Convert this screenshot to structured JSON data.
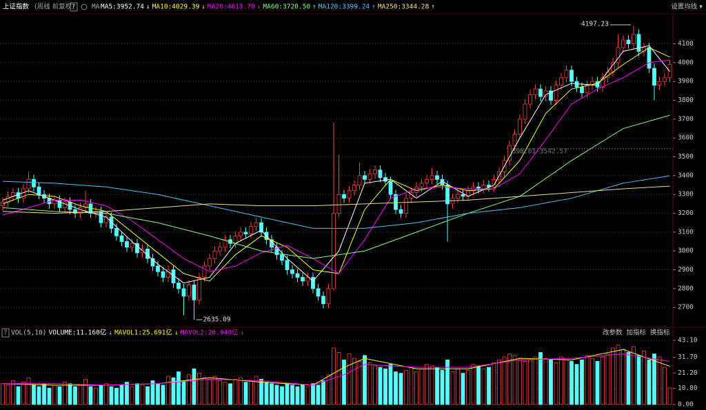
{
  "header": {
    "title": "上证指数",
    "subtitle": "(周线 前复权)",
    "help": "?",
    "ma": "MA",
    "settings": "设置均线 ▾"
  },
  "chart_data": [
    {
      "type": "candlestick",
      "up_color": "#ff3c3c",
      "down_color": "#54fcfc",
      "ylim": [
        2613,
        4252
      ],
      "yticks": [
        2700,
        2800,
        2900,
        3000,
        3100,
        3200,
        3300,
        3400,
        3500,
        3600,
        3700,
        3800,
        3900,
        4000,
        4100
      ],
      "level": 3542.57,
      "level_label": "3598.01-3542.57",
      "open": [
        3240,
        3260,
        3290,
        3310,
        3280,
        3330,
        3380,
        3340,
        3300,
        3280,
        3250,
        3270,
        3230,
        3260,
        3220,
        3200,
        3230,
        3250,
        3200,
        3210,
        3150,
        3180,
        3120,
        3080,
        3050,
        3020,
        3040,
        2990,
        3010,
        2960,
        2920,
        2890,
        2860,
        2900,
        2830,
        2800,
        2760,
        2820,
        2740,
        2860,
        2920,
        2960,
        3000,
        3020,
        3060,
        3040,
        3080,
        3100,
        3090,
        3130,
        3150,
        3100,
        3060,
        3020,
        2980,
        2950,
        2900,
        2880,
        2860,
        2840,
        2860,
        2800,
        2760,
        2720,
        2800,
        3200,
        3300,
        3280,
        3320,
        3350,
        3400,
        3380,
        3410,
        3430,
        3390,
        3370,
        3300,
        3220,
        3200,
        3280,
        3310,
        3340,
        3360,
        3380,
        3400,
        3380,
        3350,
        3250,
        3280,
        3300,
        3290,
        3320,
        3340,
        3330,
        3350,
        3340,
        3380,
        3420,
        3480,
        3560,
        3620,
        3700,
        3780,
        3830,
        3860,
        3820,
        3850,
        3800,
        3880,
        3920,
        3960,
        3900,
        3870,
        3840,
        3880,
        3900,
        3870,
        3920,
        3950,
        4000,
        4080,
        4120,
        4100,
        4150,
        4060,
        4080,
        3970,
        3880,
        3900,
        3920
      ],
      "high": [
        3285,
        3315,
        3335,
        3335,
        3355,
        3420,
        3405,
        3365,
        3325,
        3305,
        3295,
        3295,
        3285,
        3285,
        3245,
        3255,
        3320,
        3275,
        3235,
        3235,
        3205,
        3205,
        3145,
        3105,
        3075,
        3065,
        3065,
        3035,
        3035,
        2985,
        2945,
        2915,
        2925,
        2925,
        2855,
        2825,
        2845,
        2845,
        2885,
        2945,
        2985,
        3025,
        3045,
        3085,
        3085,
        3105,
        3125,
        3125,
        3155,
        3175,
        3175,
        3125,
        3085,
        3045,
        3005,
        2975,
        2925,
        2905,
        2885,
        2885,
        2885,
        2825,
        2785,
        2825,
        3680,
        3510,
        3325,
        3345,
        3375,
        3470,
        3425,
        3435,
        3455,
        3455,
        3415,
        3395,
        3325,
        3245,
        3305,
        3335,
        3365,
        3385,
        3405,
        3440,
        3425,
        3405,
        3375,
        3305,
        3325,
        3325,
        3345,
        3365,
        3365,
        3375,
        3375,
        3405,
        3445,
        3505,
        3585,
        3645,
        3725,
        3805,
        3855,
        3885,
        3885,
        3875,
        3875,
        3905,
        3945,
        3985,
        3985,
        3925,
        3895,
        3905,
        3925,
        3925,
        3945,
        3975,
        4025,
        4150,
        4145,
        4145,
        4197.23,
        4175,
        4105,
        4105,
        3995,
        3925,
        3945,
        4015
      ],
      "low": [
        3215,
        3235,
        3265,
        3255,
        3255,
        3305,
        3315,
        3275,
        3255,
        3225,
        3225,
        3205,
        3205,
        3195,
        3175,
        3175,
        3205,
        3175,
        3175,
        3125,
        3125,
        3095,
        3055,
        3025,
        2995,
        2995,
        2965,
        2965,
        2935,
        2895,
        2865,
        2835,
        2835,
        2805,
        2775,
        2660,
        2735,
        2635.09,
        2715,
        2835,
        2895,
        2935,
        2975,
        2995,
        3015,
        3015,
        3055,
        3065,
        3065,
        3105,
        3075,
        3035,
        2995,
        2955,
        2925,
        2875,
        2855,
        2835,
        2815,
        2815,
        2775,
        2735,
        2695,
        2695,
        2790,
        3180,
        3255,
        3255,
        3295,
        3325,
        3355,
        3355,
        3385,
        3365,
        3345,
        3275,
        3195,
        3175,
        3175,
        3255,
        3285,
        3315,
        3335,
        3355,
        3355,
        3325,
        3050,
        3225,
        3255,
        3265,
        3265,
        3295,
        3305,
        3305,
        3315,
        3315,
        3355,
        3395,
        3455,
        3535,
        3595,
        3675,
        3755,
        3805,
        3795,
        3795,
        3775,
        3775,
        3855,
        3895,
        3875,
        3845,
        3815,
        3815,
        3855,
        3845,
        3845,
        3895,
        3925,
        3975,
        4055,
        4075,
        4075,
        4035,
        4035,
        3945,
        3800,
        3855,
        3875,
        3895
      ],
      "close": [
        3260,
        3290,
        3310,
        3280,
        3330,
        3380,
        3340,
        3300,
        3280,
        3250,
        3270,
        3230,
        3260,
        3220,
        3200,
        3230,
        3250,
        3200,
        3210,
        3150,
        3180,
        3120,
        3080,
        3050,
        3020,
        3040,
        2990,
        3010,
        2960,
        2920,
        2890,
        2860,
        2900,
        2830,
        2800,
        2760,
        2820,
        2740,
        2860,
        2920,
        2960,
        3000,
        3020,
        3060,
        3040,
        3080,
        3100,
        3090,
        3130,
        3150,
        3100,
        3060,
        3020,
        2980,
        2950,
        2900,
        2880,
        2860,
        2840,
        2860,
        2800,
        2760,
        2720,
        2800,
        3200,
        3300,
        3280,
        3320,
        3350,
        3400,
        3380,
        3410,
        3430,
        3390,
        3370,
        3300,
        3220,
        3200,
        3280,
        3310,
        3340,
        3360,
        3380,
        3400,
        3380,
        3350,
        3250,
        3280,
        3300,
        3290,
        3320,
        3340,
        3330,
        3350,
        3340,
        3380,
        3420,
        3480,
        3560,
        3620,
        3700,
        3780,
        3830,
        3860,
        3820,
        3850,
        3800,
        3880,
        3920,
        3960,
        3900,
        3870,
        3840,
        3880,
        3900,
        3870,
        3920,
        3950,
        4000,
        4080,
        4120,
        4100,
        4150,
        4060,
        4080,
        3970,
        3880,
        3900,
        3920,
        3990
      ],
      "ma": [
        {
          "name": "MA5",
          "label": "MA5:3952.74",
          "trend": "↓",
          "color": "#ffffff",
          "x": [
            0,
            5,
            10,
            15,
            20,
            25,
            30,
            35,
            40,
            45,
            50,
            55,
            60,
            65,
            70,
            75,
            80,
            85,
            90,
            95,
            100,
            105,
            110,
            115,
            120,
            125,
            129
          ],
          "values": [
            3270,
            3320,
            3270,
            3220,
            3180,
            3050,
            2930,
            2830,
            2860,
            3040,
            3110,
            2960,
            2840,
            3000,
            3360,
            3380,
            3280,
            3370,
            3290,
            3350,
            3600,
            3830,
            3890,
            3880,
            4060,
            4090,
            3952.74
          ]
        },
        {
          "name": "MA10",
          "label": "MA10:4029.39",
          "trend": "↓",
          "color": "#ffff00",
          "x": [
            0,
            5,
            10,
            15,
            20,
            25,
            30,
            35,
            40,
            45,
            50,
            55,
            60,
            65,
            70,
            75,
            80,
            85,
            90,
            95,
            100,
            105,
            110,
            115,
            120,
            125,
            129
          ],
          "values": [
            3250,
            3300,
            3290,
            3240,
            3210,
            3100,
            2990,
            2880,
            2840,
            2980,
            3080,
            3020,
            2900,
            2880,
            3220,
            3380,
            3320,
            3350,
            3320,
            3330,
            3480,
            3730,
            3860,
            3890,
            3990,
            4080,
            4029.39
          ]
        },
        {
          "name": "MA20",
          "label": "MA20:4013.70",
          "trend": "↓",
          "color": "#ff00ff",
          "x": [
            0,
            5,
            10,
            15,
            20,
            25,
            30,
            35,
            40,
            45,
            50,
            55,
            60,
            65,
            70,
            75,
            80,
            85,
            90,
            95,
            100,
            105,
            110,
            115,
            120,
            125,
            129
          ],
          "values": [
            3190,
            3230,
            3270,
            3270,
            3240,
            3160,
            3060,
            2960,
            2890,
            2920,
            2990,
            3030,
            2960,
            2880,
            3060,
            3280,
            3330,
            3340,
            3330,
            3330,
            3410,
            3590,
            3780,
            3860,
            3920,
            4000,
            4013.7
          ]
        },
        {
          "name": "MA60",
          "label": "MA60:3720.50",
          "trend": "↑",
          "color": "#80ff80",
          "x": [
            0,
            10,
            20,
            30,
            40,
            50,
            60,
            70,
            80,
            90,
            100,
            110,
            120,
            129
          ],
          "values": [
            3230,
            3210,
            3200,
            3150,
            3080,
            3000,
            2960,
            3000,
            3100,
            3200,
            3290,
            3480,
            3650,
            3720.5
          ]
        },
        {
          "name": "MA120",
          "label": "MA120:3399.24",
          "trend": "↑",
          "color": "#40c8ff",
          "x": [
            0,
            10,
            20,
            30,
            40,
            50,
            60,
            70,
            80,
            90,
            100,
            110,
            120,
            129
          ],
          "values": [
            3370,
            3360,
            3340,
            3300,
            3240,
            3180,
            3120,
            3120,
            3150,
            3200,
            3230,
            3280,
            3360,
            3399.24
          ]
        },
        {
          "name": "MA250",
          "label": "MA250:3344.28",
          "trend": "↑",
          "color": "#f0e080",
          "x": [
            0,
            10,
            20,
            30,
            40,
            50,
            60,
            70,
            80,
            90,
            100,
            110,
            120,
            129
          ],
          "values": [
            3210,
            3200,
            3210,
            3230,
            3250,
            3240,
            3240,
            3250,
            3260,
            3270,
            3290,
            3310,
            3330,
            3344.28
          ]
        }
      ]
    },
    {
      "type": "bar",
      "help": "?",
      "title": "VOL(5,10)",
      "value_label": "VOLUME:11.160亿",
      "trend": "↓",
      "ylim": [
        0,
        43.1
      ],
      "yticks": [
        {
          "value": 0,
          "label": "0.00"
        },
        {
          "value": 10.8,
          "label": "10.80"
        },
        {
          "value": 21.2,
          "label": "21.20"
        },
        {
          "value": 31.7,
          "label": "31.70"
        },
        {
          "value": 43.1,
          "label": "43.10"
        }
      ],
      "buttons": [
        "改参数",
        "加指标",
        "换指标"
      ],
      "values": [
        14,
        13,
        16,
        12,
        15,
        18,
        13,
        12,
        14,
        11,
        13,
        12,
        15,
        14,
        12,
        13,
        17,
        12,
        11,
        13,
        14,
        12,
        11,
        13,
        15,
        12,
        14,
        13,
        12,
        16,
        14,
        13,
        19,
        18,
        22,
        16,
        20,
        24,
        21,
        18,
        17,
        19,
        16,
        15,
        14,
        17,
        18,
        15,
        16,
        19,
        17,
        15,
        14,
        13,
        12,
        14,
        13,
        12,
        13,
        12,
        14,
        13,
        16,
        20,
        38,
        35,
        30,
        34,
        31,
        29,
        33,
        28,
        26,
        25,
        24,
        27,
        22,
        21,
        23,
        25,
        22,
        24,
        27,
        26,
        25,
        23,
        30,
        22,
        24,
        21,
        23,
        27,
        26,
        24,
        25,
        28,
        30,
        32,
        34,
        33,
        31,
        29,
        30,
        32,
        35,
        31,
        30,
        28,
        32,
        30,
        29,
        27,
        30,
        33,
        31,
        29,
        32,
        34,
        38,
        40,
        37,
        35,
        39,
        33,
        36,
        30,
        34,
        32,
        25,
        11.16
      ],
      "ma": [
        {
          "name": "MAVOL1",
          "label": "MAVOL1:25.691亿",
          "trend": "↓",
          "color": "#ffff00",
          "x": [
            0,
            10,
            20,
            30,
            40,
            50,
            60,
            66,
            70,
            80,
            90,
            100,
            110,
            120,
            129
          ],
          "values": [
            14,
            13,
            13,
            14,
            18,
            15,
            13,
            25,
            31,
            24,
            24,
            31,
            30,
            37,
            25.691
          ]
        },
        {
          "name": "MAVOL2",
          "label": "MAVOL2:28.940亿",
          "trend": "↓",
          "color": "#ff00ff",
          "x": [
            0,
            10,
            20,
            30,
            40,
            50,
            60,
            66,
            70,
            80,
            90,
            100,
            110,
            120,
            129
          ],
          "values": [
            14,
            14,
            13,
            14,
            17,
            16,
            13,
            20,
            27,
            25,
            25,
            30,
            31,
            34,
            28.94
          ]
        }
      ]
    }
  ]
}
